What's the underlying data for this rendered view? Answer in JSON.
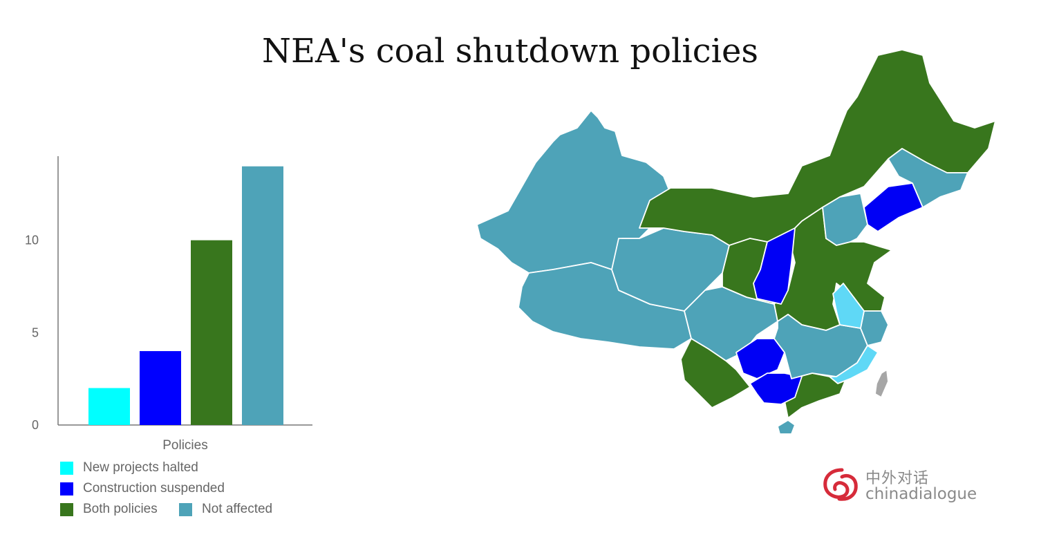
{
  "title": "NEA's coal shutdown policies",
  "chart_data": {
    "type": "bar",
    "title": "NEA's coal shutdown policies",
    "categories": [
      "Policies"
    ],
    "xlabel": "Policies",
    "ylabel": "",
    "ylim": [
      0,
      14
    ],
    "yticks": [
      0,
      5,
      10
    ],
    "grid": false,
    "legend_placement": "bottom-left",
    "series": [
      {
        "name": "New projects halted",
        "values": [
          2
        ],
        "color": "#00ffff"
      },
      {
        "name": "Construction suspended",
        "values": [
          4
        ],
        "color": "#0000ff"
      },
      {
        "name": "Both policies",
        "values": [
          10
        ],
        "color": "#38761d"
      },
      {
        "name": "Not affected",
        "values": [
          14
        ],
        "color": "#4ea3b8"
      }
    ]
  },
  "map": {
    "colors": {
      "new_projects_halted": "#5fd8f6",
      "construction_suspended": "#0000f5",
      "both_policies": "#38761d",
      "not_affected": "#4ea3b8",
      "no_data": "#a6a6a6"
    }
  },
  "logo": {
    "chinese": "中外对话",
    "english": "chinadialogue",
    "color": "#d62b3a"
  }
}
